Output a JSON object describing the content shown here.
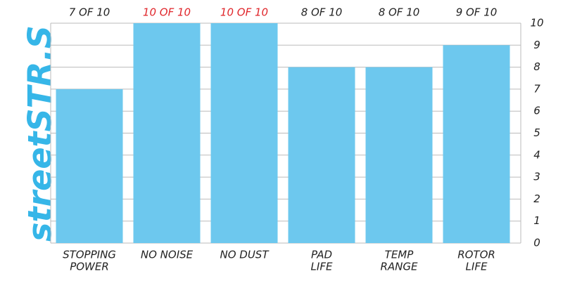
{
  "chart_data": {
    "type": "bar",
    "brand": "streetSTR.S",
    "categories": [
      [
        "STOPPING",
        "POWER"
      ],
      [
        "NO NOISE"
      ],
      [
        "NO DUST"
      ],
      [
        "PAD",
        "LIFE"
      ],
      [
        "TEMP",
        "RANGE"
      ],
      [
        "ROTOR",
        "LIFE"
      ]
    ],
    "values": [
      7,
      10,
      10,
      8,
      8,
      9
    ],
    "value_labels": [
      "7 OF 10",
      "10 OF 10",
      "10 OF 10",
      "8 OF 10",
      "8 OF 10",
      "9 OF 10"
    ],
    "value_label_colors": [
      "#222222",
      "#e0262b",
      "#e0262b",
      "#222222",
      "#222222",
      "#222222"
    ],
    "color": "#6dc8ee",
    "ylim": [
      0,
      10
    ],
    "yticks": [
      0,
      1,
      2,
      3,
      4,
      5,
      6,
      7,
      8,
      9,
      10
    ],
    "grid": true
  }
}
